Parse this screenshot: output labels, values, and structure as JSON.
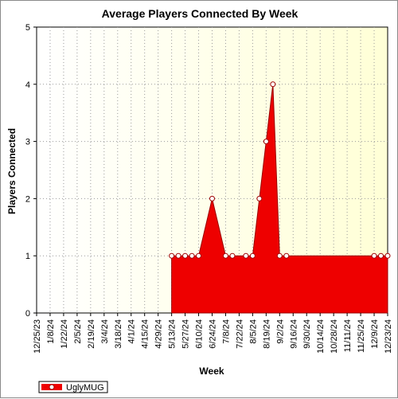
{
  "chart_data": {
    "type": "area",
    "title": "Average Players Connected By Week",
    "xlabel": "Week",
    "ylabel": "Players Connected",
    "ylim": [
      0,
      5
    ],
    "yticks": [
      0,
      1,
      2,
      3,
      4,
      5
    ],
    "x_tick_labels": [
      "12/25/23",
      "1/8/24",
      "1/22/24",
      "2/5/24",
      "2/19/24",
      "3/4/24",
      "3/18/24",
      "4/1/24",
      "4/15/24",
      "4/29/24",
      "5/13/24",
      "5/27/24",
      "6/10/24",
      "6/24/24",
      "7/8/24",
      "7/22/24",
      "8/5/24",
      "8/19/24",
      "9/2/24",
      "9/16/24",
      "9/30/24",
      "10/14/24",
      "10/28/24",
      "11/11/24",
      "11/25/24",
      "12/9/24",
      "12/23/24"
    ],
    "x": [
      "12/25/23",
      "1/1/24",
      "1/8/24",
      "1/15/24",
      "1/22/24",
      "1/29/24",
      "2/5/24",
      "2/12/24",
      "2/19/24",
      "2/26/24",
      "3/4/24",
      "3/11/24",
      "3/18/24",
      "3/25/24",
      "4/1/24",
      "4/8/24",
      "4/15/24",
      "4/22/24",
      "4/29/24",
      "5/6/24",
      "5/13/24",
      "5/20/24",
      "5/27/24",
      "6/3/24",
      "6/10/24",
      "6/17/24",
      "6/24/24",
      "7/1/24",
      "7/8/24",
      "7/15/24",
      "7/22/24",
      "7/29/24",
      "8/5/24",
      "8/12/24",
      "8/19/24",
      "8/26/24",
      "9/2/24",
      "9/9/24",
      "9/16/24",
      "9/23/24",
      "9/30/24",
      "10/7/24",
      "10/14/24",
      "10/21/24",
      "10/28/24",
      "11/4/24",
      "11/11/24",
      "11/18/24",
      "11/25/24",
      "12/2/24",
      "12/9/24",
      "12/16/24",
      "12/23/24"
    ],
    "series": [
      {
        "name": "UglyMUG",
        "color": "#ee0000",
        "values": [
          0,
          0,
          0,
          0,
          0,
          0,
          0,
          0,
          0,
          0,
          0,
          0,
          0,
          0,
          0,
          0,
          0,
          0,
          0,
          0,
          1,
          1,
          1,
          1,
          1,
          1.5,
          2,
          1.5,
          1,
          1,
          1,
          1,
          1,
          2,
          3,
          4,
          1,
          1,
          1,
          1,
          1,
          1,
          1,
          1,
          1,
          1,
          1,
          1,
          1,
          1,
          1,
          1,
          1
        ],
        "markers": [
          false,
          false,
          false,
          false,
          false,
          false,
          false,
          false,
          false,
          false,
          false,
          false,
          false,
          false,
          false,
          false,
          false,
          false,
          false,
          false,
          true,
          true,
          true,
          true,
          true,
          false,
          true,
          false,
          true,
          true,
          false,
          true,
          true,
          true,
          true,
          true,
          true,
          true,
          false,
          false,
          false,
          false,
          false,
          false,
          false,
          false,
          false,
          false,
          false,
          false,
          true,
          true,
          true
        ]
      }
    ],
    "grid": true,
    "background_color": "#fffff0",
    "legend_position": "bottom-left"
  }
}
